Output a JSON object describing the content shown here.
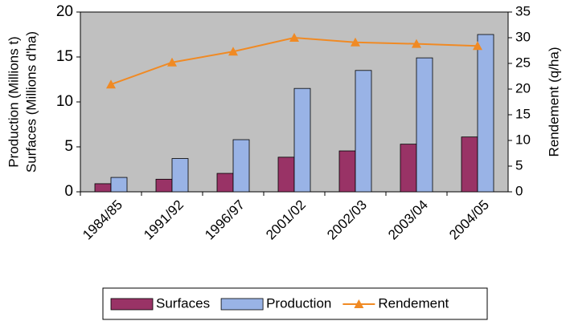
{
  "chart_data": {
    "type": "bar",
    "ylabel": [
      "Production (Millions t)",
      "Surfaces (Millions d'ha)"
    ],
    "y2label": "Rendement (q/ha)",
    "categories": [
      "1984/85",
      "1991/92",
      "1996/97",
      "2001/02",
      "2002/03",
      "2003/04",
      "2004/05"
    ],
    "series": [
      {
        "name": "Surfaces",
        "color": "#993366",
        "values": [
          0.9,
          1.4,
          2.05,
          3.85,
          4.55,
          5.3,
          6.1
        ]
      },
      {
        "name": "Production",
        "color": "#99b3e6",
        "values": [
          1.6,
          3.7,
          5.8,
          11.5,
          13.5,
          14.9,
          17.5
        ]
      },
      {
        "name": "Rendement",
        "color": "#f08a24",
        "type": "line",
        "axis": "y2",
        "values": [
          20.9,
          25.2,
          27.3,
          30,
          29.1,
          28.8,
          28.4
        ]
      }
    ],
    "ylim": [
      0,
      20
    ],
    "yticks": [
      0,
      5,
      10,
      15,
      20
    ],
    "y2lim": [
      0,
      35
    ],
    "y2ticks": [
      0,
      5,
      10,
      15,
      20,
      25,
      30,
      35
    ],
    "plot_background": "#c0c0c0",
    "legend": "bottom"
  }
}
